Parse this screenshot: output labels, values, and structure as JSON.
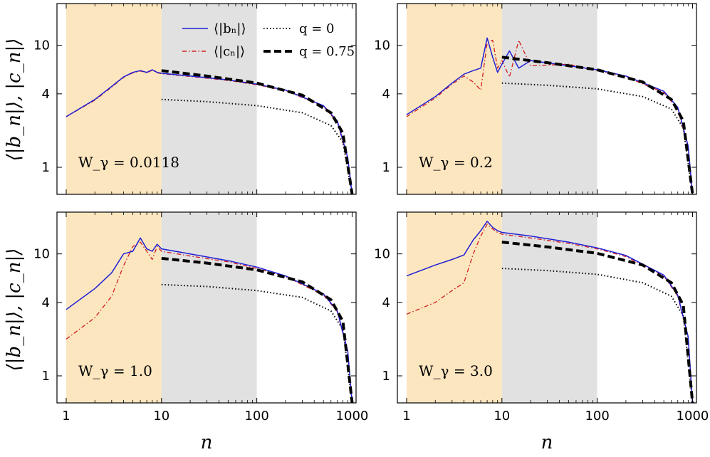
{
  "figure": {
    "shared_ylabel": "⟨|b_n|⟩, |c_n|⟩",
    "shared_xlabel": "n",
    "x_ticks": [
      "1",
      "10",
      "100",
      "1000"
    ],
    "y_ticks": [
      "1",
      "4",
      "10"
    ],
    "colors": {
      "b_line": "#1f1fd6",
      "c_line": "#d01e1e",
      "q0_line": "#000000",
      "q075_line": "#000000",
      "region_orange": "#fce6c0",
      "region_gray": "#e1e1e1"
    }
  },
  "legend": {
    "b_label": "⟨|bₙ|⟩",
    "c_label": "⟨|cₙ|⟩",
    "q0_label": "q = 0",
    "q075_label": "q = 0.75"
  },
  "chart_data": [
    {
      "type": "line",
      "panel": "top-left",
      "annotation": "W_γ = 0.0118",
      "xscale": "log",
      "yscale": "log",
      "xlim": [
        0.8,
        1100
      ],
      "ylim": [
        0.6,
        22
      ],
      "xlabel": "",
      "ylabel": "⟨|b_n|⟩, |c_n|⟩",
      "shaded_regions": [
        {
          "x": [
            1,
            10
          ],
          "color": "orange"
        },
        {
          "x": [
            10,
            100
          ],
          "color": "gray"
        }
      ],
      "series": [
        {
          "name": "⟨|b_n|⟩",
          "style": "solid",
          "x": [
            1,
            2,
            3,
            4,
            5,
            6,
            7,
            8,
            9,
            10,
            20,
            50,
            100,
            200,
            500,
            700,
            900,
            1000
          ],
          "y": [
            2.6,
            3.6,
            4.6,
            5.5,
            6.0,
            6.2,
            6.0,
            6.3,
            6.0,
            5.9,
            5.6,
            5.2,
            4.8,
            4.3,
            3.2,
            2.4,
            1.2,
            0.6
          ]
        },
        {
          "name": "⟨|c_n|⟩",
          "style": "dashdot",
          "x": [
            1,
            2,
            3,
            4,
            5,
            6,
            7,
            8,
            9,
            10,
            20,
            50,
            100,
            200,
            500,
            700,
            900,
            1000
          ],
          "y": [
            2.6,
            3.55,
            4.55,
            5.45,
            5.95,
            6.15,
            5.95,
            6.25,
            5.95,
            5.85,
            5.55,
            5.15,
            4.75,
            4.25,
            3.15,
            2.35,
            1.15,
            0.6
          ]
        },
        {
          "name": "q = 0",
          "style": "dotted",
          "x": [
            10,
            30,
            100,
            300,
            600,
            800,
            1000
          ],
          "y": [
            3.6,
            3.45,
            3.2,
            2.8,
            2.2,
            1.6,
            0.6
          ]
        },
        {
          "name": "q = 0.75",
          "style": "dashed",
          "x": [
            10,
            30,
            100,
            300,
            600,
            800,
            1000
          ],
          "y": [
            6.2,
            5.6,
            4.9,
            3.9,
            2.8,
            1.9,
            0.6
          ]
        }
      ]
    },
    {
      "type": "line",
      "panel": "top-right",
      "annotation": "W_γ = 0.2",
      "xscale": "log",
      "yscale": "log",
      "xlim": [
        0.8,
        1100
      ],
      "ylim": [
        0.6,
        22
      ],
      "xlabel": "",
      "ylabel": "",
      "shaded_regions": [
        {
          "x": [
            1,
            10
          ],
          "color": "orange"
        },
        {
          "x": [
            10,
            100
          ],
          "color": "gray"
        }
      ],
      "series": [
        {
          "name": "⟨|b_n|⟩",
          "style": "solid",
          "x": [
            1,
            2,
            3,
            4,
            5,
            6,
            7,
            8,
            9,
            10,
            12,
            15,
            20,
            50,
            100,
            200,
            500,
            700,
            900,
            1000
          ],
          "y": [
            2.7,
            3.8,
            4.9,
            5.8,
            6.2,
            6.5,
            11.5,
            8.0,
            6.0,
            7.0,
            9.0,
            6.5,
            7.5,
            6.8,
            6.3,
            5.6,
            4.2,
            3.1,
            1.5,
            0.6
          ]
        },
        {
          "name": "⟨|c_n|⟩",
          "style": "dashdot",
          "x": [
            1,
            2,
            3,
            4,
            5,
            6,
            7,
            8,
            9,
            10,
            12,
            15,
            20,
            50,
            100,
            200,
            500,
            700,
            900,
            1000
          ],
          "y": [
            2.6,
            3.7,
            4.8,
            5.6,
            5.0,
            4.3,
            10.5,
            11.0,
            6.5,
            7.5,
            5.5,
            11.0,
            6.8,
            7.0,
            6.2,
            5.5,
            4.1,
            3.0,
            1.45,
            0.6
          ]
        },
        {
          "name": "q = 0",
          "style": "dotted",
          "x": [
            10,
            30,
            100,
            300,
            600,
            800,
            1000
          ],
          "y": [
            4.9,
            4.7,
            4.4,
            3.8,
            3.0,
            2.1,
            0.6
          ]
        },
        {
          "name": "q = 0.75",
          "style": "dashed",
          "x": [
            10,
            30,
            100,
            300,
            600,
            800,
            1000
          ],
          "y": [
            8.0,
            7.2,
            6.3,
            5.0,
            3.6,
            2.4,
            0.6
          ]
        }
      ]
    },
    {
      "type": "line",
      "panel": "bottom-left",
      "annotation": "W_γ = 1.0",
      "xscale": "log",
      "yscale": "log",
      "xlim": [
        0.8,
        1100
      ],
      "ylim": [
        0.6,
        22
      ],
      "xlabel": "n",
      "ylabel": "⟨|b_n|⟩, |c_n|⟩",
      "shaded_regions": [
        {
          "x": [
            1,
            10
          ],
          "color": "orange"
        },
        {
          "x": [
            10,
            100
          ],
          "color": "gray"
        }
      ],
      "series": [
        {
          "name": "⟨|b_n|⟩",
          "style": "solid",
          "x": [
            1,
            2,
            3,
            4,
            5,
            6,
            7,
            8,
            9,
            10,
            20,
            50,
            100,
            200,
            500,
            700,
            900,
            1000
          ],
          "y": [
            3.5,
            5.2,
            7.0,
            10.0,
            10.5,
            13.5,
            11.0,
            10.5,
            12.0,
            11.0,
            10.0,
            8.8,
            7.8,
            6.6,
            4.7,
            3.4,
            1.6,
            0.6
          ]
        },
        {
          "name": "⟨|c_n|⟩",
          "style": "dashdot",
          "x": [
            1,
            2,
            3,
            4,
            5,
            6,
            7,
            8,
            9,
            10,
            20,
            50,
            100,
            200,
            500,
            700,
            900,
            1000
          ],
          "y": [
            2.0,
            3.0,
            4.5,
            8.0,
            11.5,
            12.5,
            10.5,
            9.0,
            11.5,
            10.5,
            9.6,
            8.6,
            7.6,
            6.5,
            4.6,
            3.35,
            1.55,
            0.6
          ]
        },
        {
          "name": "q = 0",
          "style": "dotted",
          "x": [
            10,
            30,
            100,
            300,
            600,
            800,
            1000
          ],
          "y": [
            5.6,
            5.4,
            5.0,
            4.4,
            3.4,
            2.4,
            0.6
          ]
        },
        {
          "name": "q = 0.75",
          "style": "dashed",
          "x": [
            10,
            30,
            100,
            300,
            600,
            800,
            1000
          ],
          "y": [
            9.2,
            8.4,
            7.4,
            5.9,
            4.2,
            2.8,
            0.6
          ]
        }
      ]
    },
    {
      "type": "line",
      "panel": "bottom-right",
      "annotation": "W_γ = 3.0",
      "xscale": "log",
      "yscale": "log",
      "xlim": [
        0.8,
        1100
      ],
      "ylim": [
        0.6,
        22
      ],
      "xlabel": "n",
      "ylabel": "",
      "shaded_regions": [
        {
          "x": [
            1,
            10
          ],
          "color": "orange"
        },
        {
          "x": [
            10,
            100
          ],
          "color": "gray"
        }
      ],
      "series": [
        {
          "name": "⟨|b_n|⟩",
          "style": "solid",
          "x": [
            1,
            2,
            3,
            4,
            5,
            6,
            7,
            8,
            9,
            10,
            20,
            50,
            100,
            200,
            500,
            700,
            900,
            1000
          ],
          "y": [
            6.6,
            8.1,
            9.0,
            9.8,
            13.0,
            15.5,
            18.5,
            16.5,
            15.5,
            15.0,
            14.0,
            12.5,
            11.2,
            9.7,
            6.7,
            4.6,
            2.1,
            0.6
          ]
        },
        {
          "name": "⟨|c_n|⟩",
          "style": "dashdot",
          "x": [
            1,
            2,
            3,
            4,
            5,
            6,
            7,
            8,
            9,
            10,
            20,
            50,
            100,
            200,
            500,
            700,
            900,
            1000
          ],
          "y": [
            3.2,
            4.0,
            5.0,
            5.8,
            10.0,
            14.0,
            17.5,
            16.0,
            15.0,
            14.5,
            13.5,
            12.2,
            11.0,
            9.5,
            6.6,
            4.5,
            2.05,
            0.6
          ]
        },
        {
          "name": "q = 0",
          "style": "dotted",
          "x": [
            10,
            30,
            100,
            300,
            600,
            800,
            1000
          ],
          "y": [
            7.6,
            7.3,
            6.8,
            5.8,
            4.5,
            3.1,
            0.6
          ]
        },
        {
          "name": "q = 0.75",
          "style": "dashed",
          "x": [
            10,
            30,
            100,
            300,
            600,
            800,
            1000
          ],
          "y": [
            12.5,
            11.4,
            10.1,
            8.1,
            5.8,
            3.8,
            0.6
          ]
        }
      ]
    }
  ]
}
